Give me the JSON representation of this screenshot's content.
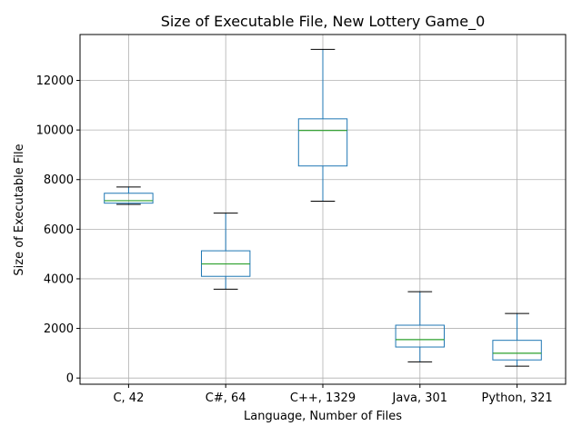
{
  "chart_data": {
    "type": "box",
    "title": "Size of Executable File, New Lottery Game_0",
    "xlabel": "Language, Number of Files",
    "ylabel": "Size of Executable File",
    "ylim": [
      -250,
      13850
    ],
    "yticks": [
      0,
      2000,
      4000,
      6000,
      8000,
      10000,
      12000
    ],
    "grid": true,
    "colors": {
      "box": "#1f77b4",
      "median": "#2ca02c",
      "whisker": "#1f77b4",
      "cap": "#000000",
      "grid": "#b0b0b0"
    },
    "categories": [
      "C, 42",
      "C#, 64",
      "C++, 1329",
      "Java, 301",
      "Python, 321"
    ],
    "boxes": [
      {
        "whislo": 7000,
        "q1": 7050,
        "med": 7150,
        "q3": 7450,
        "whishi": 7700
      },
      {
        "whislo": 3580,
        "q1": 4100,
        "med": 4600,
        "q3": 5130,
        "whishi": 6650
      },
      {
        "whislo": 7130,
        "q1": 8550,
        "med": 9980,
        "q3": 10450,
        "whishi": 13250
      },
      {
        "whislo": 650,
        "q1": 1250,
        "med": 1550,
        "q3": 2130,
        "whishi": 3480
      },
      {
        "whislo": 480,
        "q1": 730,
        "med": 1000,
        "q3": 1520,
        "whishi": 2600
      }
    ]
  }
}
